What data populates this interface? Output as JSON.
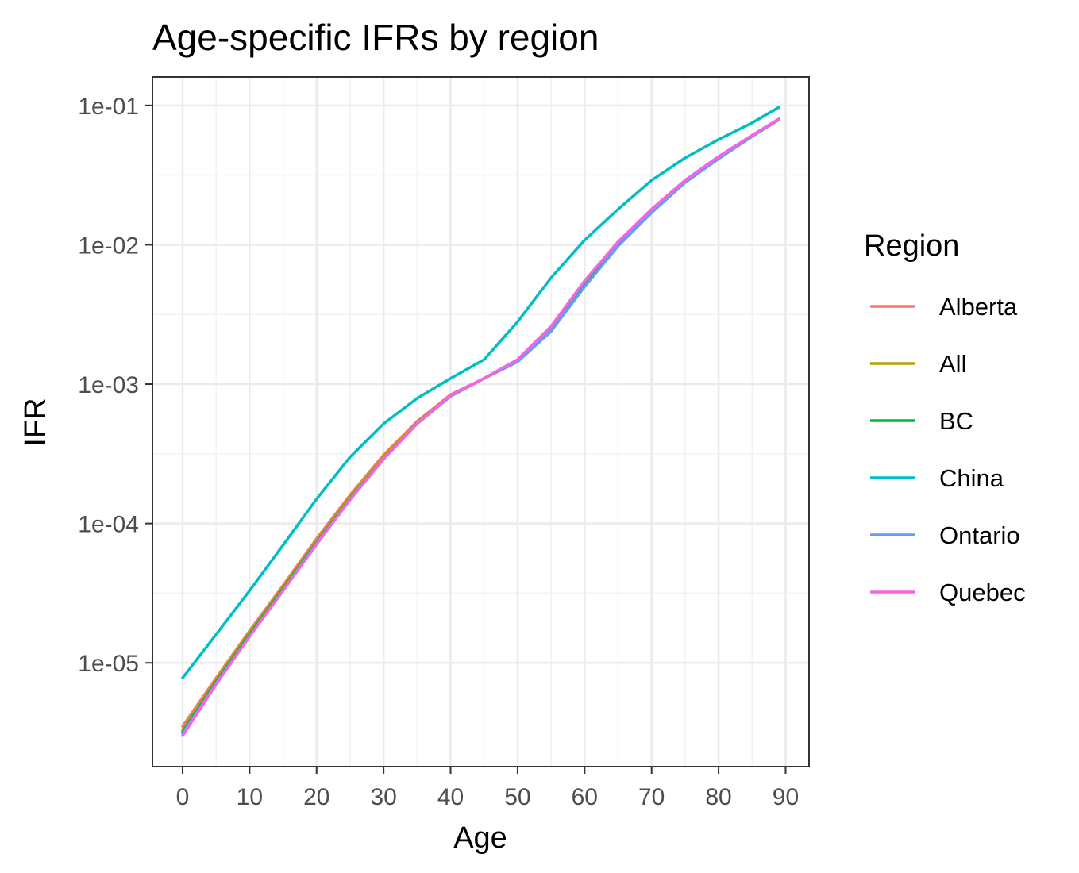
{
  "chart_data": {
    "type": "line",
    "title": "Age-specific IFRs by region",
    "xlabel": "Age",
    "ylabel": "IFR",
    "xlim": [
      -4.5,
      93.5
    ],
    "ylim": [
      1.8e-06,
      0.16
    ],
    "y_scale": "log10",
    "x_ticks": [
      0,
      10,
      20,
      30,
      40,
      50,
      60,
      70,
      80,
      90
    ],
    "x_tick_labels": [
      "0",
      "10",
      "20",
      "30",
      "40",
      "50",
      "60",
      "70",
      "80",
      "90"
    ],
    "y_ticks": [
      1e-05,
      0.0001,
      0.001,
      0.01,
      0.1
    ],
    "y_tick_labels": [
      "1e-05",
      "1e-04",
      "1e-03",
      "1e-02",
      "1e-01"
    ],
    "grid": true,
    "legend": {
      "title": "Region",
      "position": "right"
    },
    "x": [
      0,
      5,
      10,
      15,
      20,
      25,
      30,
      35,
      40,
      45,
      50,
      55,
      60,
      65,
      70,
      75,
      80,
      85,
      89
    ],
    "series": [
      {
        "name": "Alberta",
        "color": "#F8766D",
        "values": [
          3.5e-06,
          7.8e-06,
          1.7e-05,
          3.6e-05,
          7.8e-05,
          0.00016,
          0.00031,
          0.00054,
          0.00084,
          0.0011,
          0.0015,
          0.0026,
          0.0055,
          0.0105,
          0.018,
          0.029,
          0.043,
          0.061,
          0.08
        ]
      },
      {
        "name": "All",
        "color": "#B79F00",
        "values": [
          3.3e-06,
          7.5e-06,
          1.65e-05,
          3.5e-05,
          7.5e-05,
          0.000155,
          0.0003,
          0.00053,
          0.00083,
          0.0011,
          0.00148,
          0.0025,
          0.0053,
          0.0102,
          0.0175,
          0.0285,
          0.042,
          0.06,
          0.079
        ]
      },
      {
        "name": "BC",
        "color": "#00BA38",
        "values": [
          3.2e-06,
          7.3e-06,
          1.6e-05,
          3.4e-05,
          7.3e-05,
          0.00015,
          0.00029,
          0.00052,
          0.00082,
          0.0011,
          0.00145,
          0.0024,
          0.0051,
          0.01,
          0.0172,
          0.028,
          0.0415,
          0.06,
          0.079
        ]
      },
      {
        "name": "China",
        "color": "#00BFC4",
        "values": [
          7.8e-06,
          1.6e-05,
          3.3e-05,
          7e-05,
          0.00015,
          0.0003,
          0.00052,
          0.00079,
          0.0011,
          0.0015,
          0.0028,
          0.0058,
          0.0108,
          0.018,
          0.029,
          0.042,
          0.057,
          0.075,
          0.097
        ]
      },
      {
        "name": "Ontario",
        "color": "#619CFF",
        "values": [
          3.1e-06,
          7.1e-06,
          1.55e-05,
          3.3e-05,
          7.2e-05,
          0.000148,
          0.00029,
          0.00052,
          0.00082,
          0.0011,
          0.00145,
          0.0024,
          0.005,
          0.0098,
          0.017,
          0.028,
          0.0415,
          0.06,
          0.079
        ]
      },
      {
        "name": "Quebec",
        "color": "#F564E3",
        "values": [
          3e-06,
          7e-06,
          1.55e-05,
          3.3e-05,
          7.1e-05,
          0.000148,
          0.00029,
          0.00052,
          0.00083,
          0.0011,
          0.0015,
          0.0026,
          0.0055,
          0.0105,
          0.018,
          0.029,
          0.043,
          0.061,
          0.08
        ]
      }
    ]
  }
}
